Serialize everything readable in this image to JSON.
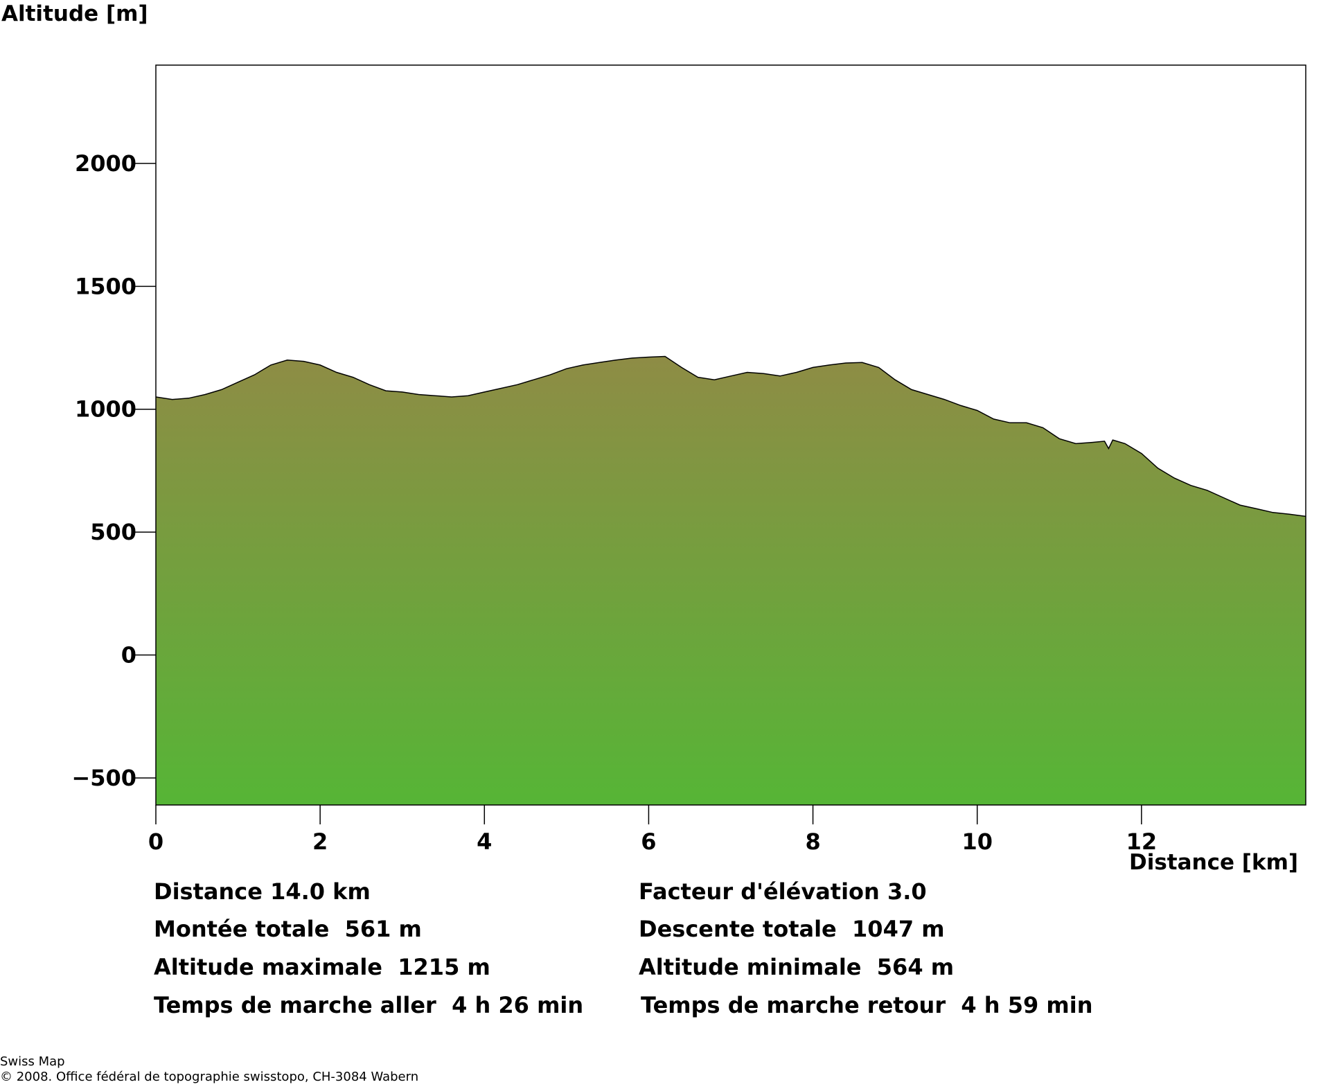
{
  "chart_data": {
    "type": "area",
    "ylabel": "Altitude [m]",
    "xlabel": "Distance [km]",
    "xlim": [
      0,
      14.0
    ],
    "ylim": [
      -610,
      2400
    ],
    "xticks": [
      0,
      2,
      4,
      6,
      8,
      10,
      12
    ],
    "xtick_labels": [
      "0",
      "2",
      "4",
      "6",
      "8",
      "10",
      "12"
    ],
    "yticks": [
      -500,
      0,
      500,
      1000,
      1500,
      2000
    ],
    "ytick_labels": [
      "−500",
      "0",
      "500",
      "1000",
      "1500",
      "2000"
    ],
    "grid": false,
    "colors": {
      "fill_top": "#8e8c45",
      "fill_bottom": "#56b536",
      "line": "#000000"
    },
    "series": [
      {
        "x": [
          0,
          0.2,
          0.4,
          0.6,
          0.8,
          1.0,
          1.2,
          1.4,
          1.6,
          1.8,
          2.0,
          2.2,
          2.4,
          2.6,
          2.8,
          3.0,
          3.2,
          3.4,
          3.6,
          3.8,
          4.0,
          4.2,
          4.4,
          4.6,
          4.8,
          5.0,
          5.2,
          5.4,
          5.6,
          5.8,
          6.0,
          6.2,
          6.4,
          6.6,
          6.8,
          7.0,
          7.2,
          7.4,
          7.6,
          7.8,
          8.0,
          8.2,
          8.4,
          8.6,
          8.8,
          9.0,
          9.2,
          9.4,
          9.6,
          9.8,
          10.0,
          10.2,
          10.4,
          10.6,
          10.8,
          11.0,
          11.2,
          11.4,
          11.55,
          11.6,
          11.65,
          11.8,
          12.0,
          12.2,
          12.4,
          12.6,
          12.8,
          13.0,
          13.2,
          13.4,
          13.6,
          13.8,
          14.0
        ],
        "values": [
          1050,
          1040,
          1045,
          1060,
          1080,
          1110,
          1140,
          1180,
          1200,
          1195,
          1180,
          1150,
          1130,
          1100,
          1075,
          1070,
          1060,
          1055,
          1050,
          1055,
          1070,
          1085,
          1100,
          1120,
          1140,
          1165,
          1180,
          1190,
          1200,
          1208,
          1212,
          1215,
          1170,
          1130,
          1120,
          1135,
          1150,
          1145,
          1135,
          1150,
          1170,
          1180,
          1188,
          1190,
          1170,
          1120,
          1080,
          1060,
          1040,
          1015,
          995,
          960,
          945,
          945,
          925,
          880,
          860,
          865,
          870,
          840,
          875,
          860,
          820,
          760,
          720,
          690,
          670,
          640,
          610,
          595,
          580,
          573,
          564
        ]
      }
    ]
  },
  "stats": {
    "distance": "Distance 14.0 km",
    "factor": "Facteur d'élévation 3.0",
    "ascent": "Montée totale  561 m",
    "descent": "Descente totale  1047 m",
    "alt_max": "Altitude maximale  1215 m",
    "alt_min": "Altitude minimale  564 m",
    "time_out": "Temps de marche aller  4 h 26 min",
    "time_back": "Temps de marche retour  4 h 59 min"
  },
  "footer": {
    "line1": "Swiss Map",
    "line2": "© 2008. Office fédéral de topographie swisstopo, CH-3084 Wabern"
  }
}
